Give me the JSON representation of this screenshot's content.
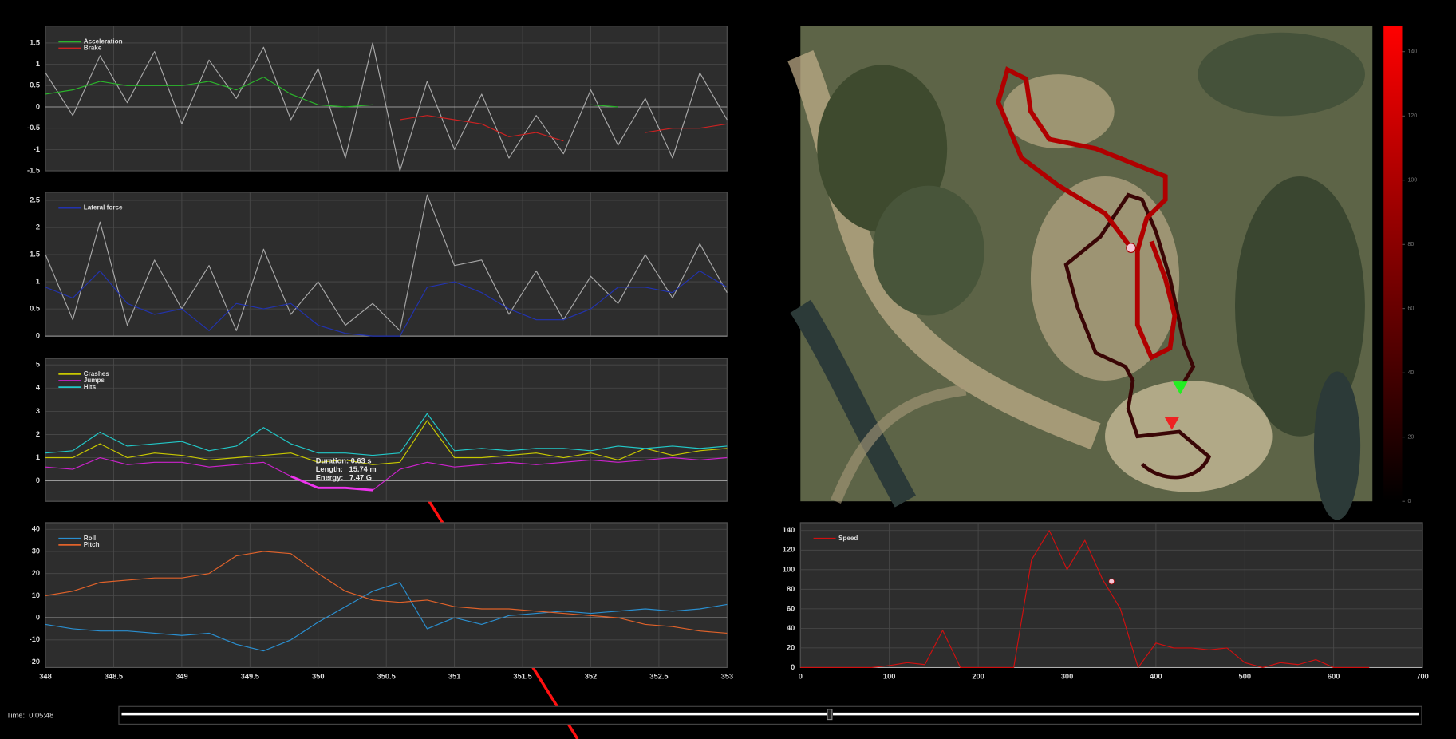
{
  "time_label": "Time:  0:05:48",
  "chart_data": [
    {
      "type": "line",
      "xlim": [
        348,
        353
      ],
      "xticks": [
        348,
        348.5,
        349,
        349.5,
        350,
        350.5,
        351,
        351.5,
        352,
        352.5,
        353
      ],
      "show_xtick_labels": false,
      "ylim": [
        -1.5,
        1.9
      ],
      "yticks": [
        -1.5,
        -1,
        -0.5,
        0,
        0.5,
        1,
        1.5
      ],
      "grid": true,
      "x": [
        348,
        348.2,
        348.4,
        348.6,
        348.8,
        349,
        349.2,
        349.4,
        349.6,
        349.8,
        350,
        350.2,
        350.4,
        350.6,
        350.8,
        351,
        351.2,
        351.4,
        351.6,
        351.8,
        352,
        352.2,
        352.4,
        352.6,
        352.8,
        353
      ],
      "series": [
        {
          "color": "#a8a8a8",
          "values": [
            0.8,
            -0.2,
            1.2,
            0.1,
            1.3,
            -0.4,
            1.1,
            0.2,
            1.4,
            -0.3,
            0.9,
            -1.2,
            1.5,
            -1.5,
            0.6,
            -1.0,
            0.3,
            -1.2,
            -0.2,
            -1.1,
            0.4,
            -0.9,
            0.2,
            -1.2,
            0.8,
            -0.3
          ]
        },
        {
          "name": "Acceleration",
          "color": "#2bb52b",
          "values": [
            0.3,
            0.4,
            0.6,
            0.5,
            0.5,
            0.5,
            0.6,
            0.4,
            0.7,
            0.3,
            0.05,
            0,
            0.05,
            null,
            null,
            null,
            null,
            null,
            null,
            null,
            0.05,
            0,
            null,
            null,
            null,
            null
          ]
        },
        {
          "name": "Brake",
          "color": "#cc2222",
          "values": [
            null,
            null,
            null,
            null,
            null,
            null,
            null,
            null,
            null,
            null,
            null,
            null,
            null,
            -0.3,
            -0.2,
            -0.3,
            -0.4,
            -0.7,
            -0.6,
            -0.8,
            null,
            null,
            -0.6,
            -0.5,
            -0.5,
            -0.4
          ]
        }
      ]
    },
    {
      "type": "line",
      "xlim": [
        348,
        353
      ],
      "xticks": [
        348,
        348.5,
        349,
        349.5,
        350,
        350.5,
        351,
        351.5,
        352,
        352.5,
        353
      ],
      "show_xtick_labels": false,
      "ylim": [
        0,
        2.65
      ],
      "yticks": [
        0,
        0.5,
        1,
        1.5,
        2,
        2.5
      ],
      "grid": true,
      "x": [
        348,
        348.2,
        348.4,
        348.6,
        348.8,
        349,
        349.2,
        349.4,
        349.6,
        349.8,
        350,
        350.2,
        350.4,
        350.6,
        350.8,
        351,
        351.2,
        351.4,
        351.6,
        351.8,
        352,
        352.2,
        352.4,
        352.6,
        352.8,
        353
      ],
      "series": [
        {
          "color": "#a8a8a8",
          "values": [
            1.5,
            0.3,
            2.1,
            0.2,
            1.4,
            0.5,
            1.3,
            0.1,
            1.6,
            0.4,
            1.0,
            0.2,
            0.6,
            0.1,
            2.6,
            1.3,
            1.4,
            0.4,
            1.2,
            0.3,
            1.1,
            0.6,
            1.5,
            0.7,
            1.7,
            0.8
          ]
        },
        {
          "name": "Lateral force",
          "color": "#2233b0",
          "values": [
            0.9,
            0.7,
            1.2,
            0.6,
            0.4,
            0.5,
            0.1,
            0.6,
            0.5,
            0.6,
            0.2,
            0.05,
            0,
            0,
            0.9,
            1.0,
            0.8,
            0.5,
            0.3,
            0.3,
            0.5,
            0.9,
            0.9,
            0.8,
            1.2,
            0.9
          ]
        }
      ]
    },
    {
      "type": "line",
      "xlim": [
        348,
        353
      ],
      "xticks": [
        348,
        348.5,
        349,
        349.5,
        350,
        350.5,
        351,
        351.5,
        352,
        352.5,
        353
      ],
      "show_xtick_labels": false,
      "ylim": [
        -0.88,
        5.28
      ],
      "yticks": [
        0,
        1,
        2,
        3,
        4,
        5
      ],
      "grid": true,
      "x": [
        348,
        348.2,
        348.4,
        348.6,
        348.8,
        349,
        349.2,
        349.4,
        349.6,
        349.8,
        350,
        350.2,
        350.4,
        350.6,
        350.8,
        351,
        351.2,
        351.4,
        351.6,
        351.8,
        352,
        352.2,
        352.4,
        352.6,
        352.8,
        353
      ],
      "series": [
        {
          "name": "Crashes",
          "color": "#c8c800",
          "values": [
            1.0,
            1.0,
            1.6,
            1.0,
            1.2,
            1.1,
            0.9,
            1.0,
            1.1,
            1.2,
            0.8,
            0.9,
            0.7,
            0.8,
            2.6,
            1.0,
            1.0,
            1.1,
            1.2,
            1.0,
            1.2,
            0.9,
            1.4,
            1.1,
            1.3,
            1.4
          ]
        },
        {
          "name": "Jumps",
          "color": "#cc22cc",
          "values": [
            0.6,
            0.5,
            1.0,
            0.7,
            0.8,
            0.8,
            0.6,
            0.7,
            0.8,
            0.2,
            -0.3,
            -0.3,
            -0.4,
            0.5,
            0.8,
            0.6,
            0.7,
            0.8,
            0.7,
            0.8,
            0.9,
            0.8,
            0.9,
            1.0,
            0.9,
            1.0
          ]
        },
        {
          "name": "Hits",
          "color": "#22c8c8",
          "values": [
            1.2,
            1.3,
            2.1,
            1.5,
            1.6,
            1.7,
            1.3,
            1.5,
            2.3,
            1.6,
            1.2,
            1.2,
            1.1,
            1.2,
            2.9,
            1.3,
            1.4,
            1.3,
            1.4,
            1.4,
            1.3,
            1.5,
            1.4,
            1.5,
            1.4,
            1.5
          ]
        },
        {
          "color": "#ee33ee",
          "line_width": 2.5,
          "values": [
            null,
            null,
            null,
            null,
            null,
            null,
            null,
            null,
            null,
            0.2,
            -0.3,
            -0.3,
            -0.4,
            null,
            null,
            null,
            null,
            null,
            null,
            null,
            null,
            null,
            null,
            null,
            null,
            null
          ]
        }
      ],
      "annotations": [
        "Duration: 0.63 s",
        "Length:   15.74 m",
        "Energy:   7.47 G"
      ]
    },
    {
      "type": "line",
      "xlim": [
        348,
        353
      ],
      "xticks": [
        348,
        348.5,
        349,
        349.5,
        350,
        350.5,
        351,
        351.5,
        352,
        352.5,
        353
      ],
      "show_xtick_labels": true,
      "ylim": [
        -22.5,
        43
      ],
      "yticks": [
        -20,
        -10,
        0,
        10,
        20,
        30,
        40
      ],
      "grid": true,
      "x": [
        348,
        348.2,
        348.4,
        348.6,
        348.8,
        349,
        349.2,
        349.4,
        349.6,
        349.8,
        350,
        350.2,
        350.4,
        350.6,
        350.8,
        351,
        351.2,
        351.4,
        351.6,
        351.8,
        352,
        352.2,
        352.4,
        352.6,
        352.8,
        353
      ],
      "series": [
        {
          "name": "Roll",
          "color": "#2a8fd0",
          "values": [
            -3,
            -5,
            -6,
            -6,
            -7,
            -8,
            -7,
            -12,
            -15,
            -10,
            -2,
            5,
            12,
            16,
            -5,
            0,
            -3,
            1,
            2,
            3,
            2,
            3,
            4,
            3,
            4,
            6
          ]
        },
        {
          "name": "Pitch",
          "color": "#e0622a",
          "values": [
            10,
            12,
            16,
            17,
            18,
            18,
            20,
            28,
            30,
            29,
            20,
            12,
            8,
            7,
            8,
            5,
            4,
            4,
            3,
            2,
            1,
            0,
            -3,
            -4,
            -6,
            -7
          ]
        }
      ]
    },
    {
      "type": "map",
      "colorbar": {
        "lim": [
          0,
          148
        ],
        "ticks": [
          0,
          20,
          40,
          60,
          80,
          100,
          120,
          140
        ]
      }
    },
    {
      "type": "line",
      "xlim": [
        0,
        700
      ],
      "xticks": [
        0,
        100,
        200,
        300,
        400,
        500,
        600,
        700
      ],
      "show_xtick_labels": true,
      "ylim": [
        0,
        148
      ],
      "yticks": [
        0,
        20,
        40,
        60,
        80,
        100,
        120,
        140
      ],
      "grid": true,
      "x": [
        0,
        20,
        40,
        60,
        80,
        100,
        120,
        140,
        160,
        180,
        200,
        220,
        240,
        260,
        280,
        300,
        320,
        340,
        360,
        380,
        400,
        420,
        440,
        460,
        480,
        500,
        520,
        540,
        560,
        580,
        600,
        620,
        640
      ],
      "series": [
        {
          "name": "Speed",
          "color": "#d01010",
          "values": [
            0,
            0,
            0,
            0,
            0,
            2,
            5,
            3,
            38,
            0,
            0,
            0,
            0,
            110,
            140,
            100,
            130,
            90,
            60,
            0,
            25,
            20,
            20,
            18,
            20,
            5,
            0,
            5,
            3,
            8,
            0,
            0,
            0
          ]
        }
      ],
      "marker": [
        350,
        88
      ]
    }
  ]
}
